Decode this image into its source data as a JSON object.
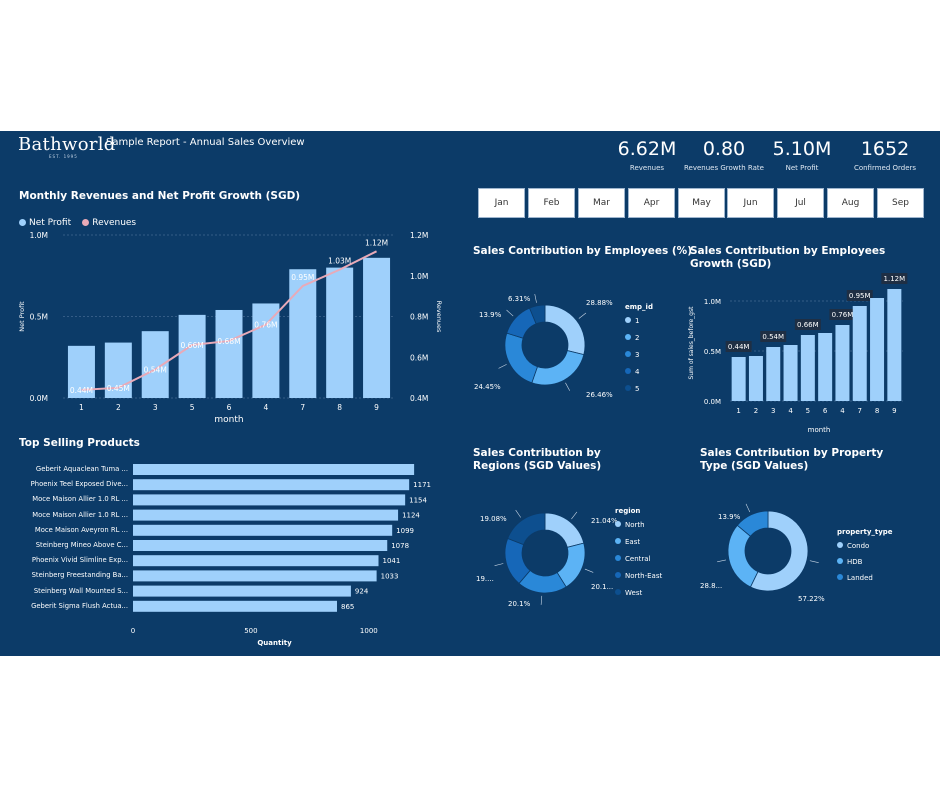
{
  "header": {
    "logo": "Bathworld",
    "logo_sub": "EST. 1995",
    "title": "Sample Report - Annual Sales Overview"
  },
  "kpis": [
    {
      "value": "6.62M",
      "label": "Revenues"
    },
    {
      "value": "0.80",
      "label": "Revenues Growth Rate"
    },
    {
      "value": "5.10M",
      "label": "Net Profit"
    },
    {
      "value": "1652",
      "label": "Confirmed Orders"
    }
  ],
  "months": [
    "Jan",
    "Feb",
    "Mar",
    "Apr",
    "May",
    "Jun",
    "Jul",
    "Aug",
    "Sep"
  ],
  "colors": {
    "background": "#0c3b68",
    "bar": "#9fd0fb",
    "line": "#e8aab8",
    "donut": [
      "#9fd0fb",
      "#5cb3f5",
      "#2a88d8",
      "#1667b8",
      "#0d4f8f"
    ]
  },
  "chart_data": [
    {
      "id": "monthly",
      "type": "bar",
      "title": "Monthly Revenues and Net Profit Growth (SGD)",
      "legend": [
        "Net Profit",
        "Revenues"
      ],
      "xlabel": "month",
      "ylabel": "Net Profit",
      "y2label": "Revenues",
      "categories": [
        "1",
        "2",
        "3",
        "5",
        "6",
        "4",
        "7",
        "8",
        "9"
      ],
      "series": [
        {
          "name": "Net Profit",
          "values": [
            0.32,
            0.34,
            0.41,
            0.51,
            0.54,
            0.58,
            0.79,
            0.8,
            0.86
          ]
        },
        {
          "name": "Revenues",
          "values": [
            0.44,
            0.45,
            0.54,
            0.66,
            0.68,
            0.76,
            0.95,
            1.03,
            1.12
          ],
          "labels": [
            "0.44M",
            "0.45M",
            "0.54M",
            "0.66M",
            "0.68M",
            "0.76M",
            "0.95M",
            "1.03M",
            "1.12M"
          ]
        }
      ],
      "ylim": [
        0,
        1.0
      ],
      "yticks": [
        "0.0M",
        "0.5M",
        "1.0M"
      ],
      "y2lim": [
        0.4,
        1.2
      ],
      "y2ticks": [
        "0.4M",
        "0.6M",
        "0.8M",
        "1.0M",
        "1.2M"
      ]
    },
    {
      "id": "employees",
      "type": "pie",
      "title": "Sales Contribution by Employees (%)",
      "legend_title": "emp_id",
      "legend": [
        "1",
        "2",
        "3",
        "4",
        "5"
      ],
      "values": [
        28.88,
        26.46,
        24.45,
        13.9,
        6.31
      ],
      "labels": [
        "28.88%",
        "26.46%",
        "24.45%",
        "13.9%",
        "6.31%"
      ]
    },
    {
      "id": "empgrowth",
      "type": "bar",
      "title": "Sales Contribution by Employees Growth (SGD)",
      "xlabel": "month",
      "ylabel": "Sum of sales_before_gst",
      "categories": [
        "1",
        "2",
        "3",
        "4",
        "5",
        "6",
        "4",
        "7",
        "8",
        "9"
      ],
      "values": [
        0.44,
        0.45,
        0.54,
        0.56,
        0.66,
        0.68,
        0.76,
        0.95,
        1.03,
        1.12
      ],
      "labels": [
        "0.44M",
        "",
        "0.54M",
        "",
        "0.66M",
        "",
        "0.76M",
        "0.95M",
        "",
        "1.12M"
      ],
      "ylim": [
        0,
        1.2
      ],
      "yticks": [
        "0.0M",
        "0.5M",
        "1.0M"
      ]
    },
    {
      "id": "products",
      "type": "bar",
      "title": "Top Selling Products",
      "xlabel": "Quantity",
      "categories": [
        "Geberit Aquaclean Tuma ...",
        "Phoenix Teel Exposed Dive...",
        "Moce Maison Allier 1.0 RL ...",
        "Moce Maison Allier 1.0 RL ...",
        "Moce Maison Aveyron RL ...",
        "Steinberg Mineo Above C...",
        "Phoenix Vivid Slimline Exp...",
        "Steinberg Freestanding Ba...",
        "Steinberg Wall Mounted S...",
        "Geberit Sigma Flush Actua..."
      ],
      "values": [
        1192,
        1171,
        1154,
        1124,
        1099,
        1078,
        1041,
        1033,
        924,
        865
      ],
      "labels": [
        "",
        "1171",
        "1154",
        "1124",
        "1099",
        "1078",
        "1041",
        "1033",
        "924",
        "865"
      ],
      "xlim": [
        0,
        1200
      ],
      "xticks": [
        "0",
        "500",
        "1000"
      ]
    },
    {
      "id": "regions",
      "type": "pie",
      "title": "Sales Contribution by Regions (SGD Values)",
      "legend_title": "region",
      "legend": [
        "North",
        "East",
        "Central",
        "North-East",
        "West"
      ],
      "values": [
        21.04,
        20.1,
        20.1,
        19.68,
        19.08
      ],
      "labels": [
        "21.04%",
        "20.1...",
        "20.1%",
        "19....",
        "19.08%"
      ]
    },
    {
      "id": "property",
      "type": "pie",
      "title": "Sales Contribution by Property Type (SGD Values)",
      "legend_title": "property_type",
      "legend": [
        "Condo",
        "HDB",
        "Landed"
      ],
      "values": [
        57.22,
        28.88,
        13.9
      ],
      "labels": [
        "57.22%",
        "28.8...",
        "13.9%"
      ]
    }
  ]
}
